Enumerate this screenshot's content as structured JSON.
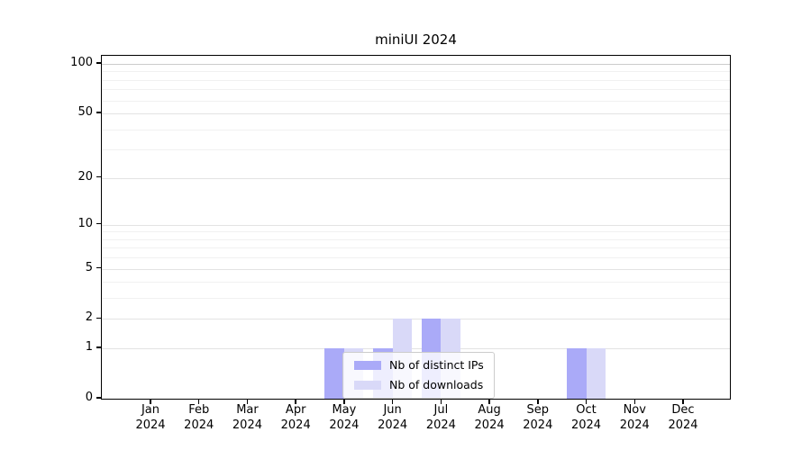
{
  "chart_data": {
    "type": "bar",
    "title": "miniUI 2024",
    "categories": [
      "Jan 2024",
      "Feb 2024",
      "Mar 2024",
      "Apr 2024",
      "May 2024",
      "Jun 2024",
      "Jul 2024",
      "Aug 2024",
      "Sep 2024",
      "Oct 2024",
      "Nov 2024",
      "Dec 2024"
    ],
    "x_tick_months": [
      "Jan",
      "Feb",
      "Mar",
      "Apr",
      "May",
      "Jun",
      "Jul",
      "Aug",
      "Sep",
      "Oct",
      "Nov",
      "Dec"
    ],
    "x_tick_year": "2024",
    "series": [
      {
        "name": "Nb of distinct IPs",
        "color": "#aaaaf8",
        "values": [
          0,
          0,
          0,
          0,
          1,
          1,
          2,
          0,
          0,
          1,
          0,
          0
        ]
      },
      {
        "name": "Nb of downloads",
        "color": "#d9d9f8",
        "values": [
          0,
          0,
          0,
          0,
          1,
          2,
          2,
          0,
          0,
          1,
          0,
          0
        ]
      }
    ],
    "xlabel": "",
    "ylabel": "",
    "yscale": "log1p",
    "ylim": [
      0,
      112
    ],
    "y_major_ticks": [
      0,
      1,
      2,
      5,
      10,
      20,
      50,
      100
    ],
    "y_minor_gridlines": [
      3,
      4,
      6,
      7,
      8,
      9,
      30,
      40,
      60,
      70,
      80,
      90
    ],
    "grid": "horizontal major+minor",
    "legend_position": "inside lower center"
  },
  "colors": {
    "grid_major": "#e3e3e3",
    "grid_minor": "#f1f1f1",
    "grid_top_line": "#cccccc",
    "axis": "#000000",
    "background": "#ffffff"
  }
}
